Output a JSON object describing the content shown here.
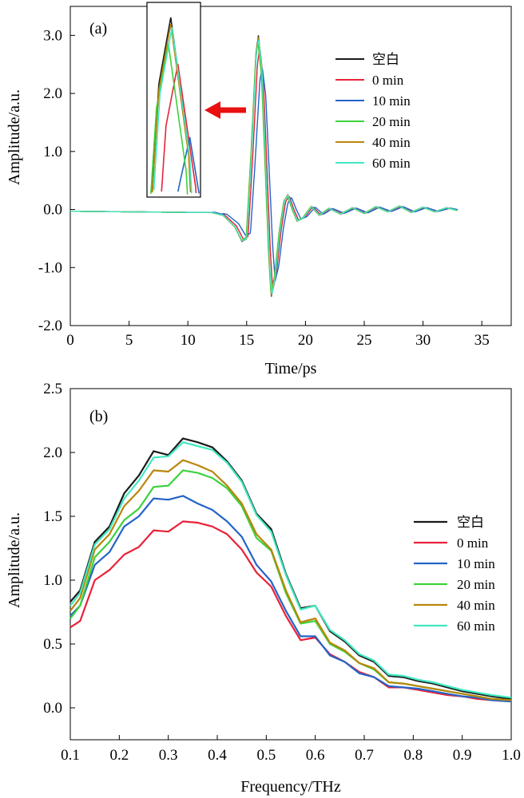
{
  "chart_data": [
    {
      "panel_label": "(a)",
      "type": "line",
      "xlabel": "Time/ps",
      "ylabel": "Amplitude/a.u.",
      "xlim": [
        0,
        37.5
      ],
      "ylim": [
        -2.0,
        3.5
      ],
      "x_ticks": [
        "0",
        "5",
        "10",
        "15",
        "20",
        "25",
        "30",
        "35"
      ],
      "y_ticks": [
        "-2.0",
        "-1.0",
        "0.0",
        "1.0",
        "2.0",
        "3.0"
      ],
      "legend_position": "right",
      "inset": "zoom of main peak near 16 ps, pointed to by red arrow",
      "series": [
        {
          "name": "空白",
          "color": "#1a1a1a",
          "shift": 0.0,
          "scale": 1.0
        },
        {
          "name": "0 min",
          "color": "#e8223a",
          "shift": 0.12,
          "scale": 0.93
        },
        {
          "name": "10 min",
          "color": "#2464c8",
          "shift": 0.32,
          "scale": 0.82
        },
        {
          "name": "20 min",
          "color": "#3cd23c",
          "shift": -0.04,
          "scale": 0.96
        },
        {
          "name": "40 min",
          "color": "#b8860b",
          "shift": 0.0,
          "scale": 0.99
        },
        {
          "name": "60 min",
          "color": "#40e8c0",
          "shift": 0.02,
          "scale": 0.985
        }
      ],
      "waveform_points": [
        [
          0,
          -0.03
        ],
        [
          5,
          -0.04
        ],
        [
          10,
          -0.05
        ],
        [
          12,
          -0.05
        ],
        [
          13,
          -0.1
        ],
        [
          14,
          -0.3
        ],
        [
          14.6,
          -0.55
        ],
        [
          15.0,
          -0.5
        ],
        [
          15.4,
          1.0
        ],
        [
          15.8,
          2.7
        ],
        [
          16.0,
          3.0
        ],
        [
          16.3,
          2.4
        ],
        [
          16.6,
          0.8
        ],
        [
          16.9,
          -0.8
        ],
        [
          17.1,
          -1.5
        ],
        [
          17.4,
          -1.2
        ],
        [
          17.8,
          -0.4
        ],
        [
          18.2,
          0.15
        ],
        [
          18.5,
          0.25
        ],
        [
          18.9,
          0.0
        ],
        [
          19.3,
          -0.2
        ],
        [
          19.8,
          -0.15
        ],
        [
          20.5,
          0.05
        ],
        [
          21.2,
          -0.1
        ],
        [
          22.0,
          0.02
        ],
        [
          23.0,
          -0.08
        ],
        [
          24.0,
          0.03
        ],
        [
          25.0,
          -0.07
        ],
        [
          26.0,
          0.05
        ],
        [
          27.0,
          -0.04
        ],
        [
          28.0,
          0.06
        ],
        [
          29.0,
          -0.05
        ],
        [
          30.0,
          0.04
        ],
        [
          31.0,
          -0.04
        ],
        [
          32.0,
          0.03
        ],
        [
          33.0,
          -0.02
        ]
      ]
    },
    {
      "panel_label": "(b)",
      "type": "line",
      "xlabel": "Frequency/THz",
      "ylabel": "Amplitude/a.u.",
      "xlim": [
        0.1,
        1.0
      ],
      "ylim": [
        -0.25,
        2.5
      ],
      "x_ticks": [
        "0.1",
        "0.2",
        "0.3",
        "0.4",
        "0.5",
        "0.6",
        "0.7",
        "0.8",
        "0.9",
        "1.0"
      ],
      "y_ticks": [
        "0.0",
        "0.5",
        "1.0",
        "1.5",
        "2.0",
        "2.5"
      ],
      "legend_position": "right",
      "x": [
        0.1,
        0.12,
        0.15,
        0.18,
        0.21,
        0.24,
        0.27,
        0.3,
        0.33,
        0.36,
        0.39,
        0.42,
        0.45,
        0.48,
        0.51,
        0.54,
        0.57,
        0.6,
        0.63,
        0.66,
        0.69,
        0.72,
        0.75,
        0.78,
        0.81,
        0.84,
        0.87,
        0.9,
        0.93,
        0.96,
        1.0
      ],
      "series": [
        {
          "name": "空白",
          "color": "#1a1a1a",
          "values": [
            0.83,
            0.92,
            1.3,
            1.42,
            1.68,
            1.82,
            2.01,
            1.98,
            2.11,
            2.08,
            2.04,
            1.93,
            1.78,
            1.52,
            1.4,
            1.05,
            0.78,
            0.8,
            0.6,
            0.52,
            0.41,
            0.36,
            0.25,
            0.24,
            0.21,
            0.19,
            0.16,
            0.13,
            0.11,
            0.09,
            0.07
          ]
        },
        {
          "name": "0 min",
          "color": "#e8223a",
          "values": [
            0.63,
            0.68,
            1.0,
            1.08,
            1.2,
            1.26,
            1.39,
            1.38,
            1.46,
            1.45,
            1.42,
            1.36,
            1.24,
            1.06,
            0.95,
            0.72,
            0.53,
            0.55,
            0.42,
            0.36,
            0.28,
            0.24,
            0.16,
            0.16,
            0.14,
            0.12,
            0.1,
            0.09,
            0.07,
            0.06,
            0.05
          ]
        },
        {
          "name": "10 min",
          "color": "#2464c8",
          "values": [
            0.72,
            0.8,
            1.12,
            1.22,
            1.42,
            1.5,
            1.64,
            1.63,
            1.66,
            1.6,
            1.55,
            1.46,
            1.34,
            1.12,
            0.99,
            0.76,
            0.56,
            0.56,
            0.41,
            0.36,
            0.27,
            0.24,
            0.17,
            0.16,
            0.15,
            0.13,
            0.11,
            0.09,
            0.08,
            0.06,
            0.05
          ]
        },
        {
          "name": "20 min",
          "color": "#3cd23c",
          "values": [
            0.7,
            0.8,
            1.18,
            1.3,
            1.47,
            1.56,
            1.73,
            1.74,
            1.86,
            1.84,
            1.8,
            1.72,
            1.58,
            1.33,
            1.23,
            0.9,
            0.66,
            0.68,
            0.5,
            0.44,
            0.35,
            0.3,
            0.2,
            0.19,
            0.17,
            0.15,
            0.13,
            0.11,
            0.09,
            0.07,
            0.06
          ]
        },
        {
          "name": "40 min",
          "color": "#b8860b",
          "values": [
            0.76,
            0.86,
            1.24,
            1.36,
            1.58,
            1.7,
            1.86,
            1.85,
            1.94,
            1.9,
            1.85,
            1.74,
            1.6,
            1.36,
            1.24,
            0.92,
            0.67,
            0.7,
            0.51,
            0.45,
            0.35,
            0.31,
            0.2,
            0.19,
            0.17,
            0.15,
            0.13,
            0.11,
            0.09,
            0.07,
            0.06
          ]
        },
        {
          "name": "60 min",
          "color": "#40e8c0",
          "values": [
            0.8,
            0.9,
            1.28,
            1.4,
            1.64,
            1.78,
            1.96,
            1.97,
            2.08,
            2.05,
            2.02,
            1.92,
            1.77,
            1.51,
            1.38,
            1.04,
            0.77,
            0.8,
            0.61,
            0.53,
            0.42,
            0.37,
            0.26,
            0.25,
            0.22,
            0.2,
            0.17,
            0.14,
            0.12,
            0.1,
            0.08
          ]
        }
      ]
    }
  ]
}
